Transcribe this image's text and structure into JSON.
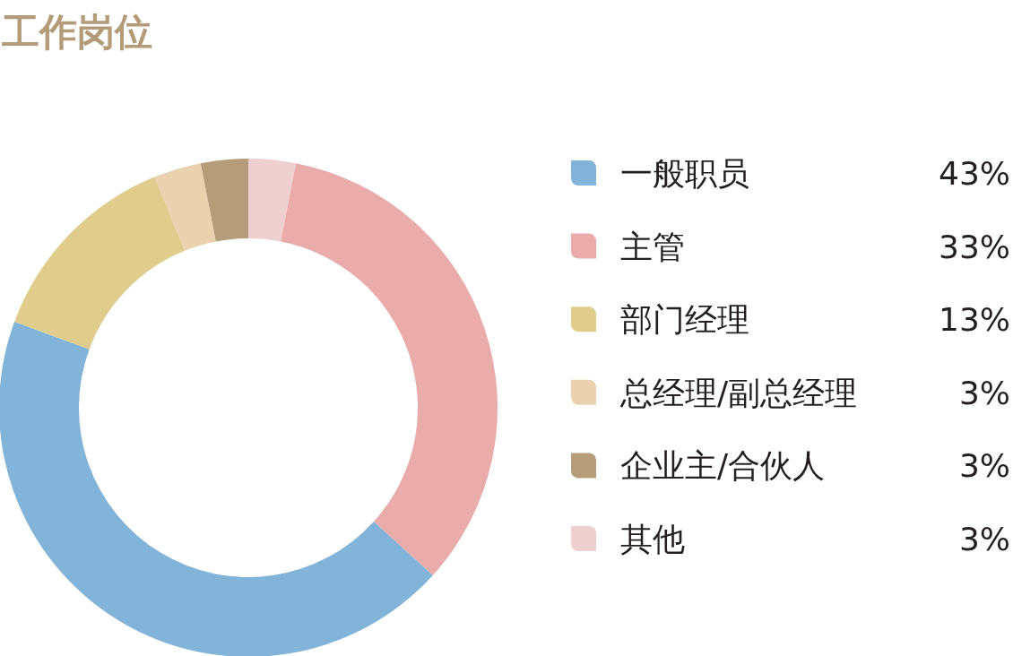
{
  "chart_data": {
    "type": "donut",
    "title": "工作岗位",
    "categories": [
      "一般职员",
      "主管",
      "部门经理",
      "总经理/副总经理",
      "企业主/合伙人",
      "其他"
    ],
    "values": [
      43,
      33,
      13,
      3,
      3,
      3
    ],
    "value_labels": [
      "43%",
      "33%",
      "13%",
      "3%",
      "3%",
      "3%"
    ],
    "colors": [
      "#82b3d8",
      "#eaabab",
      "#e0cc8c",
      "#ead2b0",
      "#b59c7a",
      "#efd0d0"
    ],
    "legend": "right"
  }
}
